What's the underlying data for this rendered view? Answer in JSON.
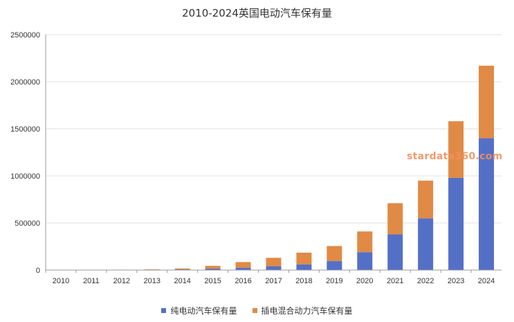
{
  "chart_data": {
    "type": "bar",
    "stacked": true,
    "title": "2010-2024英国电动汽车保有量",
    "xlabel": "",
    "ylabel": "",
    "categories": [
      "2010",
      "2011",
      "2012",
      "2013",
      "2014",
      "2015",
      "2016",
      "2017",
      "2018",
      "2019",
      "2020",
      "2021",
      "2022",
      "2023",
      "2024"
    ],
    "ylim": [
      0,
      2500000
    ],
    "yticks": [
      "0",
      "500000",
      "1000000",
      "1500000",
      "2000000",
      "2500000"
    ],
    "grid": true,
    "legend_position": "bottom",
    "series": [
      {
        "name": "纯电动汽车保有量",
        "color": "#5470c6",
        "values": [
          1000,
          1500,
          2500,
          4000,
          7000,
          15000,
          25000,
          40000,
          60000,
          95000,
          190000,
          380000,
          550000,
          980000,
          1400000
        ]
      },
      {
        "name": "插电混合动力汽车保有量",
        "color": "#e08a45",
        "values": [
          500,
          1000,
          1500,
          4000,
          10000,
          30000,
          60000,
          90000,
          125000,
          160000,
          220000,
          330000,
          400000,
          600000,
          770000
        ]
      }
    ]
  },
  "watermark": "stardata360.com"
}
